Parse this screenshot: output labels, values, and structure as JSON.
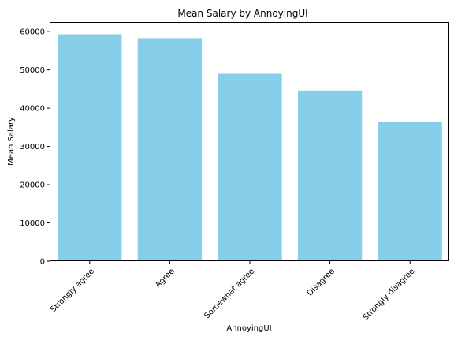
{
  "chart_data": {
    "type": "bar",
    "title": "Mean Salary by AnnoyingUI",
    "xlabel": "AnnoyingUI",
    "ylabel": "Mean Salary",
    "categories": [
      "Strongly agree",
      "Agree",
      "Somewhat agree",
      "Disagree",
      "Strongly disagree"
    ],
    "values": [
      59300,
      58300,
      49000,
      44600,
      36400
    ],
    "yticks": [
      "0",
      "10000",
      "20000",
      "30000",
      "40000",
      "50000",
      "60000"
    ],
    "ylim": [
      0,
      62300
    ],
    "bar_color": "#87ceeb",
    "grid": false,
    "legend": "none"
  }
}
